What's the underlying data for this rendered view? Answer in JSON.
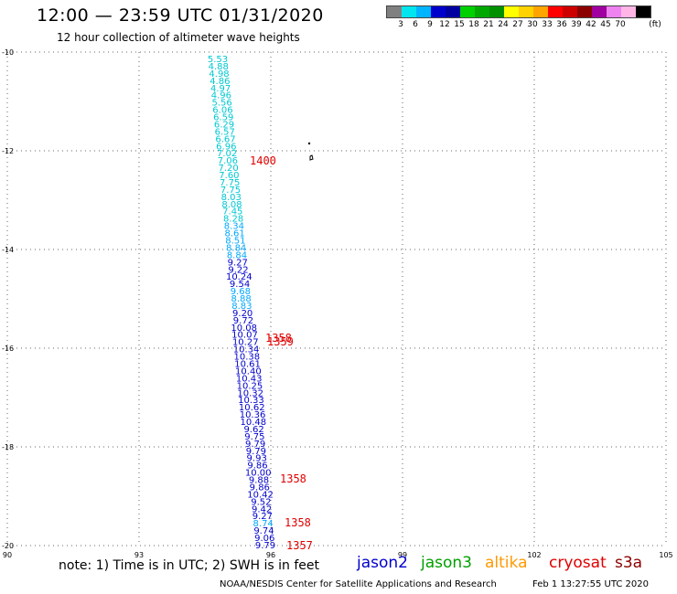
{
  "title": "12:00 — 23:59 UTC 01/31/2020",
  "subtitle": "12 hour collection of altimeter wave heights",
  "legend": {
    "colors": [
      "#808080",
      "#00e5ee",
      "#00b4ff",
      "#0000cd",
      "#0000a0",
      "#00d000",
      "#00a800",
      "#009000",
      "#ffff00",
      "#ffd200",
      "#ffa500",
      "#ff0000",
      "#cd0000",
      "#8b0000",
      "#a000a0",
      "#ee82ee",
      "#ffb6e6",
      "#000000"
    ],
    "labels": [
      "3",
      "6",
      "9",
      "12",
      "15",
      "18",
      "21",
      "24",
      "27",
      "30",
      "33",
      "36",
      "39",
      "42",
      "45",
      "70"
    ],
    "unit": "(ft)"
  },
  "axes": {
    "lat_labels": [
      "-10",
      "-12",
      "-14",
      "-16",
      "-18",
      "-20"
    ],
    "lon_labels": [
      "90",
      "93",
      "96",
      "99",
      "102",
      "105"
    ]
  },
  "wave_heights": [
    {
      "text": "5.53",
      "color": "#00c8d2"
    },
    {
      "text": "4.88",
      "color": "#00c8d2"
    },
    {
      "text": "4.98",
      "color": "#00c8d2"
    },
    {
      "text": "4.86",
      "color": "#00c8d2"
    },
    {
      "text": "4.97",
      "color": "#00c8d2"
    },
    {
      "text": "4.96",
      "color": "#00c8d2"
    },
    {
      "text": "5.56",
      "color": "#00c8d2"
    },
    {
      "text": "6.06",
      "color": "#00c8d2"
    },
    {
      "text": "6.59",
      "color": "#00c8d2"
    },
    {
      "text": "6.29",
      "color": "#00c8d2"
    },
    {
      "text": "6.57",
      "color": "#00c8d2"
    },
    {
      "text": "6.67",
      "color": "#00c8d2"
    },
    {
      "text": "6.96",
      "color": "#00c8d2"
    },
    {
      "text": "7.02",
      "color": "#00c8d2"
    },
    {
      "text": "7.06",
      "color": "#00c8d2"
    },
    {
      "text": "7.20",
      "color": "#00c8d2"
    },
    {
      "text": "7.60",
      "color": "#00c8d2"
    },
    {
      "text": "7.75",
      "color": "#00c8d2"
    },
    {
      "text": "7.75",
      "color": "#00c8d2"
    },
    {
      "text": "8.03",
      "color": "#00c8d2"
    },
    {
      "text": "8.08",
      "color": "#00c8d2"
    },
    {
      "text": "7.45",
      "color": "#00c8d2"
    },
    {
      "text": "8.28",
      "color": "#00c8d2"
    },
    {
      "text": "8.34",
      "color": "#00a8ff"
    },
    {
      "text": "8.61",
      "color": "#00a8ff"
    },
    {
      "text": "8.51",
      "color": "#00a8ff"
    },
    {
      "text": "8.84",
      "color": "#00a8ff"
    },
    {
      "text": "8.84",
      "color": "#00a8ff"
    },
    {
      "text": "9.27",
      "color": "#0000cd"
    },
    {
      "text": "9.22",
      "color": "#0000cd"
    },
    {
      "text": "10.24",
      "color": "#0000cd"
    },
    {
      "text": "9.54",
      "color": "#0000cd"
    },
    {
      "text": "9.68",
      "color": "#00a8ff"
    },
    {
      "text": "8.88",
      "color": "#00a8ff"
    },
    {
      "text": "8.83",
      "color": "#00a8ff"
    },
    {
      "text": "9.20",
      "color": "#0000cd"
    },
    {
      "text": "9.72",
      "color": "#0000cd"
    },
    {
      "text": "10.08",
      "color": "#0000cd"
    },
    {
      "text": "10.07",
      "color": "#0000cd"
    },
    {
      "text": "10.27",
      "color": "#0000cd"
    },
    {
      "text": "10.34",
      "color": "#0000cd"
    },
    {
      "text": "10.38",
      "color": "#0000cd"
    },
    {
      "text": "10.61",
      "color": "#0000cd"
    },
    {
      "text": "10.40",
      "color": "#0000cd"
    },
    {
      "text": "10.43",
      "color": "#0000cd"
    },
    {
      "text": "10.25",
      "color": "#0000cd"
    },
    {
      "text": "10.32",
      "color": "#0000cd"
    },
    {
      "text": "10.33",
      "color": "#0000cd"
    },
    {
      "text": "10.62",
      "color": "#0000cd"
    },
    {
      "text": "10.36",
      "color": "#0000cd"
    },
    {
      "text": "10.48",
      "color": "#0000cd"
    },
    {
      "text": "9.62",
      "color": "#0000cd"
    },
    {
      "text": "9.75",
      "color": "#0000cd"
    },
    {
      "text": "9.79",
      "color": "#0000cd"
    },
    {
      "text": "9.79",
      "color": "#0000cd"
    },
    {
      "text": "9.93",
      "color": "#0000cd"
    },
    {
      "text": "9.86",
      "color": "#0000cd"
    },
    {
      "text": "10.00",
      "color": "#0000cd"
    },
    {
      "text": "9.88",
      "color": "#0000cd"
    },
    {
      "text": "9.86",
      "color": "#0000cd"
    },
    {
      "text": "10.42",
      "color": "#0000cd"
    },
    {
      "text": "9.52",
      "color": "#0000cd"
    },
    {
      "text": "9.42",
      "color": "#0000cd"
    },
    {
      "text": "9.27",
      "color": "#0000cd"
    },
    {
      "text": "8.74",
      "color": "#00a8ff"
    },
    {
      "text": "9.74",
      "color": "#0000cd"
    },
    {
      "text": "9.06",
      "color": "#0000cd"
    },
    {
      "text": "9.79",
      "color": "#0000cd"
    }
  ],
  "time_marks": [
    {
      "text": "1400",
      "color": "#e00000"
    },
    {
      "text": "1358",
      "color": "#e00000"
    },
    {
      "text": "1359",
      "color": "#e00000"
    },
    {
      "text": "1358",
      "color": "#e00000"
    },
    {
      "text": "1358",
      "color": "#e00000"
    },
    {
      "text": "1357",
      "color": "#e00000"
    }
  ],
  "footer": {
    "note": "note:  1) Time is in UTC;  2) SWH is in feet",
    "satellites": [
      {
        "name": "jason2",
        "color": "#0000cd"
      },
      {
        "name": "jason3",
        "color": "#00a000"
      },
      {
        "name": "altika",
        "color": "#ff9900"
      },
      {
        "name": "cryosat",
        "color": "#e00000"
      },
      {
        "name": "s3a",
        "color": "#8b0000"
      }
    ],
    "credit": "NOAA/NESDIS Center for Satellite Applications and Research",
    "timestamp": "Feb  1 13:27:55 UTC 2020"
  }
}
